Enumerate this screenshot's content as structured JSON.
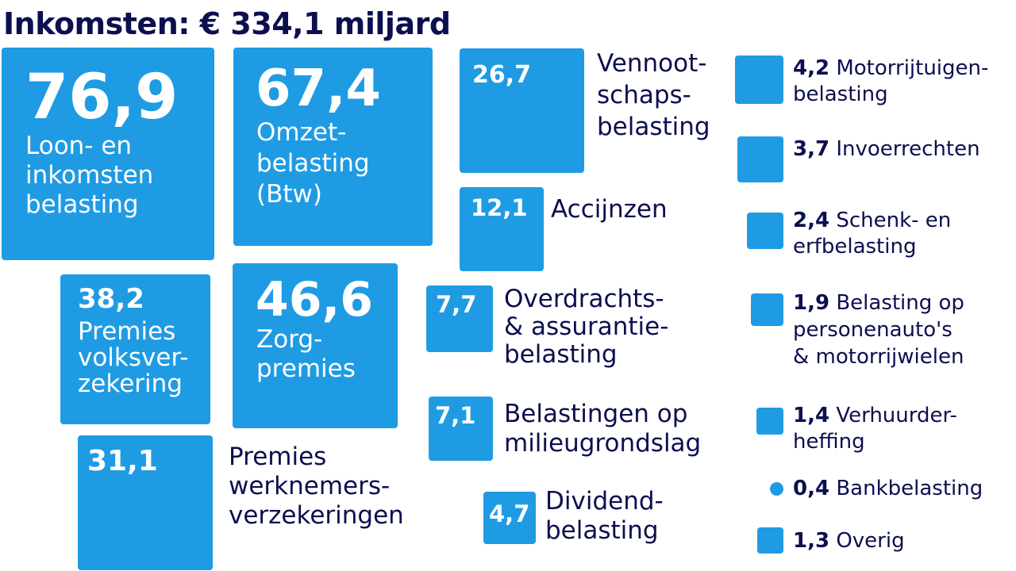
{
  "title": "Inkomsten: € 334,1 miljard",
  "colors": {
    "box": "#1f9be4",
    "text": "#0c0f4f",
    "inner_text": "#ffffff"
  },
  "chart_data": {
    "type": "proportional-area",
    "unit": "miljard euro",
    "total_label": "€ 334,1 miljard",
    "items": [
      {
        "value": "76,9",
        "label": "Loon- en\ninkomsten\nbelasting"
      },
      {
        "value": "67,4",
        "label": "Omzet-\nbelasting\n(Btw)"
      },
      {
        "value": "46,6",
        "label": "Zorg-\npremies"
      },
      {
        "value": "38,2",
        "label": "Premies\nvolksver-\nzekering"
      },
      {
        "value": "31,1",
        "label": "Premies\nwerknemers-\nverzekeringen"
      },
      {
        "value": "26,7",
        "label": "Vennoot-\nschaps-\nbelasting"
      },
      {
        "value": "12,1",
        "label": "Accijnzen"
      },
      {
        "value": "7,7",
        "label": "Overdrachts-\n& assurantie-\nbelasting"
      },
      {
        "value": "7,1",
        "label": "Belastingen op\nmilieugrondslag"
      },
      {
        "value": "4,7",
        "label": "Dividend-\nbelasting"
      },
      {
        "value": "4,2",
        "label": "Motorrijtuigen-\nbelasting"
      },
      {
        "value": "3,7",
        "label": "Invoerrechten"
      },
      {
        "value": "2,4",
        "label": "Schenk- en\nerfbelasting"
      },
      {
        "value": "1,9",
        "label": "Belasting op\npersonenauto's\n& motorrijwielen"
      },
      {
        "value": "1,4",
        "label": "Verhuurder-\nheffing"
      },
      {
        "value": "0,4",
        "label": "Bankbelasting"
      },
      {
        "value": "1,3",
        "label": "Overig"
      }
    ]
  }
}
